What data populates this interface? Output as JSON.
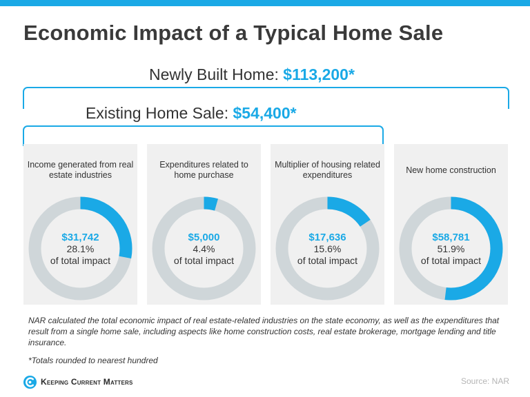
{
  "title": "Economic Impact of a Typical Home Sale",
  "new_home": {
    "label": "Newly Built Home: ",
    "amount": "$113,200*"
  },
  "existing_home": {
    "label": "Existing Home Sale: ",
    "amount": "$54,400*"
  },
  "chart_data": {
    "type": "pie",
    "title": "Economic Impact of a Typical Home Sale",
    "categories": [
      "Income generated from real estate industries",
      "Expenditures related to home purchase",
      "Multiplier of housing related expenditures",
      "New home construction"
    ],
    "values": [
      31742,
      5000,
      17636,
      58781
    ],
    "percent_of_total": [
      28.1,
      4.4,
      15.6,
      51.9
    ],
    "totals": {
      "newly_built_home": 113200,
      "existing_home_sale": 54400
    },
    "colors": {
      "filled": "#1aa9e6",
      "remainder": "#cfd6d9"
    }
  },
  "cards": [
    {
      "label": "Income generated from real estate industries",
      "value": "$31,742",
      "pct": "28.1%",
      "suffix": "of total impact"
    },
    {
      "label": "Expenditures related to home purchase",
      "value": "$5,000",
      "pct": "4.4%",
      "suffix": "of total impact"
    },
    {
      "label": "Multiplier of housing related expenditures",
      "value": "$17,636",
      "pct": "15.6%",
      "suffix": "of total impact"
    },
    {
      "label": "New home construction",
      "value": "$58,781",
      "pct": "51.9%",
      "suffix": "of total impact"
    }
  ],
  "footnote": "NAR calculated the total economic impact of real estate-related industries on the state economy, as well as the expenditures that result from a single home sale, including aspects like home construction costs, real estate brokerage, mortgage lending and title insurance.",
  "rounding_note": "*Totals rounded to nearest hundred",
  "brand": "Keeping Current Matters",
  "source": "Source: NAR",
  "colors": {
    "accent": "#1aa9e6",
    "ring": "#cfd6d9",
    "card": "#f0f0f0"
  }
}
